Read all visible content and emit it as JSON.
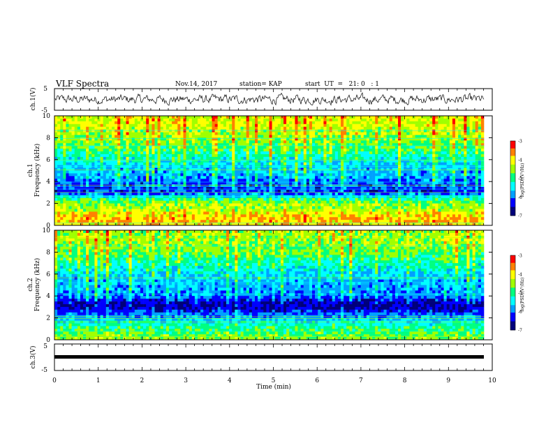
{
  "header": {
    "title": "VLF Spectra",
    "date": "Nov.14, 2017",
    "station": "station= KAP",
    "start": "start  UT  =   21: 0   : 1"
  },
  "colors": {
    "spectrogram_scale": [
      "#00007a",
      "#0000ff",
      "#00a0ff",
      "#00ffff",
      "#00ff80",
      "#a0ff00",
      "#ffff00",
      "#ff8000",
      "#ff0000",
      "#ffffff"
    ],
    "trace": "#000000",
    "frame": "#000000"
  },
  "chart_data": [
    {
      "type": "line",
      "ylabel": "ch.1(V)",
      "ylim": [
        -5,
        5
      ],
      "yticks": [
        "5",
        "-5"
      ],
      "xlim": [
        0,
        10
      ],
      "description_series": "noise waveform, amplitude roughly ±2 V"
    },
    {
      "type": "heatmap",
      "ylabel_top": "ch.1",
      "ylabel": "Frequency (kHz)",
      "ylim": [
        0,
        10
      ],
      "yticks": [
        "0",
        "2",
        "4",
        "6",
        "8",
        "10"
      ],
      "xlim": [
        0,
        10
      ],
      "colorbar": {
        "label": "log(PSD)(V²/Hz)",
        "range": [
          -7,
          -3
        ],
        "ticks": [
          "-3",
          "-4",
          "-5",
          "-6",
          "-7"
        ]
      },
      "intensity_profile": {
        "freq_khz": [
          0,
          0.5,
          1,
          1.5,
          2,
          2.5,
          3,
          3.5,
          4,
          4.5,
          5,
          5.5,
          6,
          7,
          8,
          9,
          10
        ],
        "level": [
          0.7,
          0.78,
          0.72,
          0.62,
          0.6,
          0.45,
          0.18,
          0.2,
          0.22,
          0.3,
          0.32,
          0.35,
          0.4,
          0.52,
          0.6,
          0.66,
          0.68
        ]
      }
    },
    {
      "type": "heatmap",
      "ylabel_top": "ch.2",
      "ylabel": "Frequency (kHz)",
      "ylim": [
        0,
        10
      ],
      "yticks": [
        "0",
        "2",
        "4",
        "6",
        "8",
        "10"
      ],
      "xlim": [
        0,
        10
      ],
      "colorbar": {
        "label": "log(PSD)(V²/Hz)",
        "range": [
          -7,
          -3
        ],
        "ticks": [
          "-3",
          "-4",
          "-5",
          "-6",
          "-7"
        ]
      },
      "intensity_profile": {
        "freq_khz": [
          0,
          0.5,
          1,
          1.5,
          2,
          2.5,
          3,
          3.5,
          4,
          4.5,
          5,
          5.5,
          6,
          7,
          8,
          9,
          10
        ],
        "level": [
          0.6,
          0.55,
          0.5,
          0.42,
          0.3,
          0.2,
          0.08,
          0.12,
          0.25,
          0.28,
          0.3,
          0.32,
          0.35,
          0.45,
          0.55,
          0.6,
          0.6
        ]
      }
    },
    {
      "type": "line",
      "ylabel": "ch.3(V)",
      "ylim": [
        -5,
        5
      ],
      "yticks": [
        "5",
        "-5"
      ],
      "xlim": [
        0,
        10
      ],
      "xlabel": "Time (min)",
      "xticks": [
        "0",
        "1",
        "2",
        "3",
        "4",
        "5",
        "6",
        "7",
        "8",
        "9",
        "10"
      ],
      "constant_value": 0
    }
  ]
}
